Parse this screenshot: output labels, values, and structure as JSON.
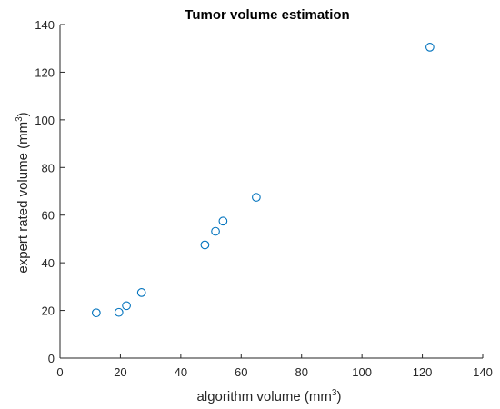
{
  "chart_data": {
    "type": "scatter",
    "title": "Tumor volume estimation",
    "xlabel": "algorithm volume (mm",
    "xlabel_sup": "3",
    "xlabel_tail": ")",
    "ylabel": "expert rated volume (mm",
    "ylabel_sup": "3",
    "ylabel_tail": ")",
    "xlim": [
      0,
      140
    ],
    "ylim": [
      0,
      140
    ],
    "xticks": [
      0,
      20,
      40,
      60,
      80,
      100,
      120,
      140
    ],
    "yticks": [
      0,
      20,
      40,
      60,
      80,
      100,
      120,
      140
    ],
    "grid": false,
    "marker": "circle",
    "marker_color": "#0072BD",
    "series": [
      {
        "x": [
          12,
          19.5,
          22,
          27,
          48,
          51.5,
          54,
          65,
          122.5
        ],
        "y": [
          19,
          19.2,
          22,
          27.5,
          47.5,
          53.2,
          57.5,
          67.5,
          130.5
        ]
      }
    ]
  }
}
